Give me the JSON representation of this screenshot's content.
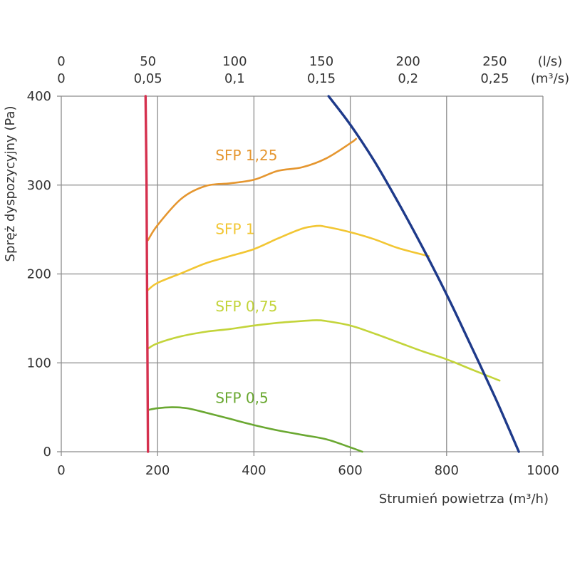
{
  "chart_data": {
    "type": "line",
    "xlabel": "Strumień powietrza (m³/h)",
    "ylabel": "Spręż dyspozycyjny (Pa)",
    "xlim": [
      0,
      1000
    ],
    "ylim": [
      0,
      400
    ],
    "x_ticks": [
      "0",
      "200",
      "400",
      "600",
      "800",
      "1000"
    ],
    "y_ticks": [
      "0",
      "100",
      "200",
      "300",
      "400"
    ],
    "top_axis_ls": {
      "unit": "(l/s)",
      "ticks": [
        "0",
        "50",
        "100",
        "150",
        "200",
        "250"
      ],
      "values": [
        0,
        50,
        100,
        150,
        200,
        250
      ]
    },
    "top_axis_m3s": {
      "unit": "(m³/s)",
      "ticks": [
        "0",
        "0,05",
        "0,1",
        "0,15",
        "0,2",
        "0,25"
      ],
      "values": [
        0,
        0.05,
        0.1,
        0.15,
        0.2,
        0.25
      ]
    },
    "grid": true,
    "colors": {
      "min_flow": "#d5304e",
      "max_curve": "#1e3a8a",
      "sfp_125": "#e5962f",
      "sfp_1": "#f2c633",
      "sfp_075": "#c3d43a",
      "sfp_05": "#6aa831"
    },
    "series": [
      {
        "name": "SFP 1,25",
        "color_key": "sfp_125",
        "points": [
          [
            180,
            238
          ],
          [
            200,
            255
          ],
          [
            250,
            285
          ],
          [
            300,
            299
          ],
          [
            350,
            302
          ],
          [
            400,
            306
          ],
          [
            450,
            316
          ],
          [
            500,
            320
          ],
          [
            550,
            330
          ],
          [
            600,
            347
          ],
          [
            612,
            352
          ]
        ]
      },
      {
        "name": "SFP 1",
        "color_key": "sfp_1",
        "points": [
          [
            180,
            182
          ],
          [
            200,
            190
          ],
          [
            250,
            201
          ],
          [
            300,
            212
          ],
          [
            350,
            220
          ],
          [
            400,
            228
          ],
          [
            450,
            240
          ],
          [
            500,
            251
          ],
          [
            530,
            254
          ],
          [
            550,
            253
          ],
          [
            600,
            247
          ],
          [
            650,
            239
          ],
          [
            700,
            229
          ],
          [
            763,
            220
          ]
        ]
      },
      {
        "name": "SFP 0,75",
        "color_key": "sfp_075",
        "points": [
          [
            180,
            116
          ],
          [
            200,
            122
          ],
          [
            250,
            130
          ],
          [
            300,
            135
          ],
          [
            350,
            138
          ],
          [
            400,
            142
          ],
          [
            450,
            145
          ],
          [
            500,
            147
          ],
          [
            530,
            148
          ],
          [
            550,
            147
          ],
          [
            600,
            142
          ],
          [
            650,
            133
          ],
          [
            700,
            123
          ],
          [
            750,
            113
          ],
          [
            800,
            104
          ],
          [
            850,
            93
          ],
          [
            910,
            80
          ]
        ]
      },
      {
        "name": "SFP 0,5",
        "color_key": "sfp_05",
        "points": [
          [
            180,
            47
          ],
          [
            200,
            49
          ],
          [
            230,
            50
          ],
          [
            260,
            49
          ],
          [
            300,
            44
          ],
          [
            350,
            37
          ],
          [
            400,
            30
          ],
          [
            450,
            24
          ],
          [
            500,
            19
          ],
          [
            550,
            14
          ],
          [
            600,
            5
          ],
          [
            625,
            0
          ]
        ]
      },
      {
        "name": "",
        "color_key": "max_curve",
        "points": [
          [
            555,
            400
          ],
          [
            600,
            368
          ],
          [
            650,
            327
          ],
          [
            700,
            280
          ],
          [
            750,
            230
          ],
          [
            800,
            177
          ],
          [
            850,
            120
          ],
          [
            900,
            62
          ],
          [
            930,
            25
          ],
          [
            950,
            0
          ]
        ]
      },
      {
        "name": "",
        "color_key": "min_flow",
        "points": [
          [
            175,
            400
          ],
          [
            177,
            300
          ],
          [
            178,
            200
          ],
          [
            179,
            100
          ],
          [
            180,
            0
          ]
        ]
      }
    ],
    "labels": [
      {
        "text": "SFP 1,25",
        "color_key": "sfp_125",
        "at": [
          320,
          328
        ]
      },
      {
        "text": "SFP 1",
        "color_key": "sfp_1",
        "at": [
          320,
          245
        ]
      },
      {
        "text": "SFP 0,75",
        "color_key": "sfp_075",
        "at": [
          320,
          158
        ]
      },
      {
        "text": "SFP 0,5",
        "color_key": "sfp_05",
        "at": [
          320,
          55
        ]
      }
    ]
  }
}
